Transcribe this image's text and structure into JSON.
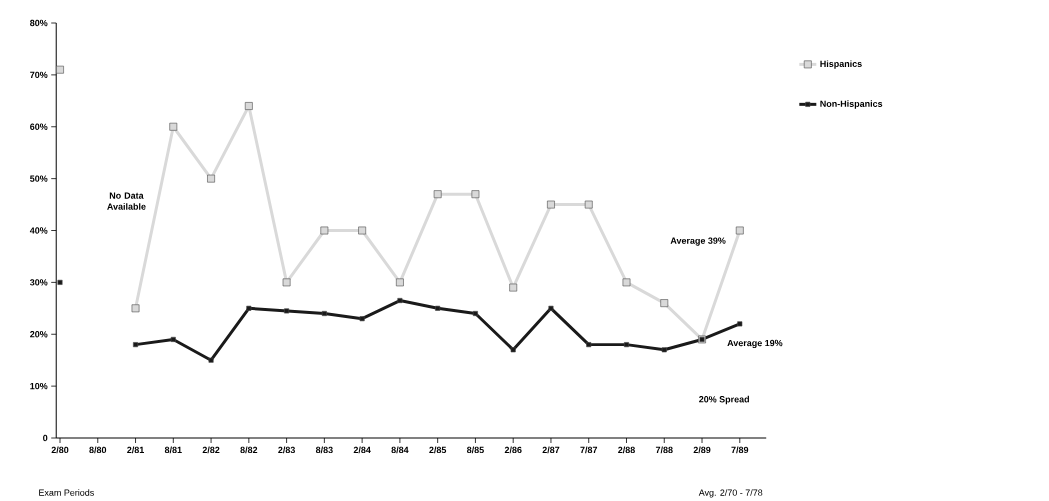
{
  "chart_data": {
    "type": "line",
    "xlabel": "Exam Periods",
    "categories": [
      "2/80",
      "8/80",
      "2/81",
      "8/81",
      "2/82",
      "8/82",
      "2/83",
      "8/83",
      "2/84",
      "8/84",
      "2/85",
      "8/85",
      "2/86",
      "2/87",
      "7/87",
      "2/88",
      "7/88",
      "2/89",
      "7/89"
    ],
    "series": [
      {
        "name": "Hispanics",
        "color": "#d9d9d9",
        "values": [
          71,
          null,
          25,
          60,
          50,
          64,
          30,
          40,
          40,
          30,
          47,
          47,
          29,
          45,
          45,
          30,
          26,
          19,
          40
        ]
      },
      {
        "name": "Non-Hispanics",
        "color": "#1a1a1a",
        "values": [
          30,
          null,
          18,
          19,
          15,
          25,
          24.5,
          24,
          23,
          26.5,
          25,
          24,
          17,
          25,
          18,
          18,
          17,
          19,
          22
        ]
      }
    ],
    "ylim": [
      0,
      80
    ],
    "yticks": [
      0,
      {
        "value": 10,
        "label": "10%"
      },
      {
        "value": 20,
        "label": "20%"
      },
      {
        "value": 30,
        "label": "30%"
      },
      {
        "value": 40,
        "label": "40%"
      },
      {
        "value": 50,
        "label": "50%"
      },
      {
        "value": 60,
        "label": "60%"
      },
      {
        "value": 70,
        "label": "70%"
      },
      {
        "value": 80,
        "label": "80%"
      }
    ],
    "marker": "square",
    "line_style": "solid",
    "grid": false,
    "legend": "right",
    "annotations": [
      "No Data Available",
      "Average 39%",
      "Average 19%",
      "20% Spread",
      "Avg. 2/70 - 7/78"
    ]
  }
}
